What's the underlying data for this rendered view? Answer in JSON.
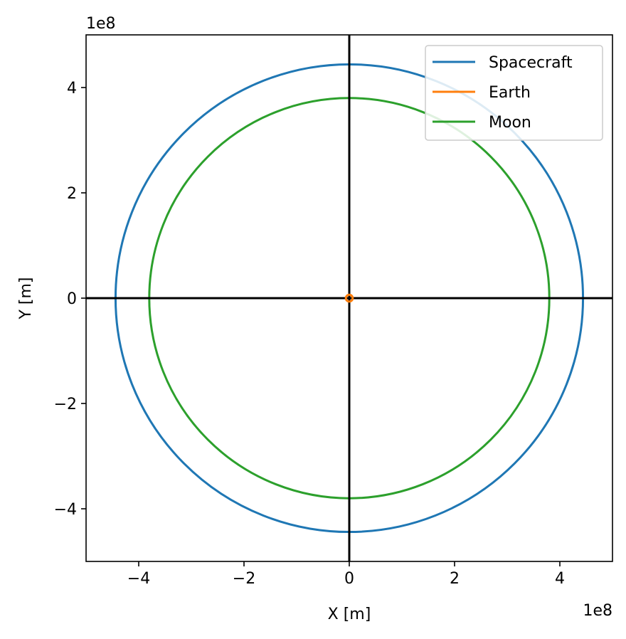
{
  "chart_data": {
    "type": "line",
    "title": "",
    "xlabel": "X [m]",
    "ylabel": "Y [m]",
    "xlim": [
      -500000000,
      500000000
    ],
    "ylim": [
      -500000000,
      500000000
    ],
    "x_offset_text": "1e8",
    "y_offset_text": "1e8",
    "x_ticks": [
      -400000000,
      -200000000,
      0,
      200000000,
      400000000
    ],
    "y_ticks": [
      -400000000,
      -200000000,
      0,
      200000000,
      400000000
    ],
    "x_tick_labels": [
      "−4",
      "−2",
      "0",
      "2",
      "4"
    ],
    "y_tick_labels": [
      "−4",
      "−2",
      "0",
      "2",
      "4"
    ],
    "grid": false,
    "axis_lines_through_origin": true,
    "legend_position": "top-right",
    "series": [
      {
        "name": "Spacecraft",
        "color": "#1f77b4",
        "shape": "circle",
        "center": [
          0,
          0
        ],
        "radius": 444000000
      },
      {
        "name": "Earth",
        "color": "#ff7f0e",
        "shape": "circle",
        "center": [
          0,
          0
        ],
        "radius": 6400000
      },
      {
        "name": "Moon",
        "color": "#2ca02c",
        "shape": "circle",
        "center": [
          0,
          0
        ],
        "radius": 380000000
      }
    ]
  }
}
